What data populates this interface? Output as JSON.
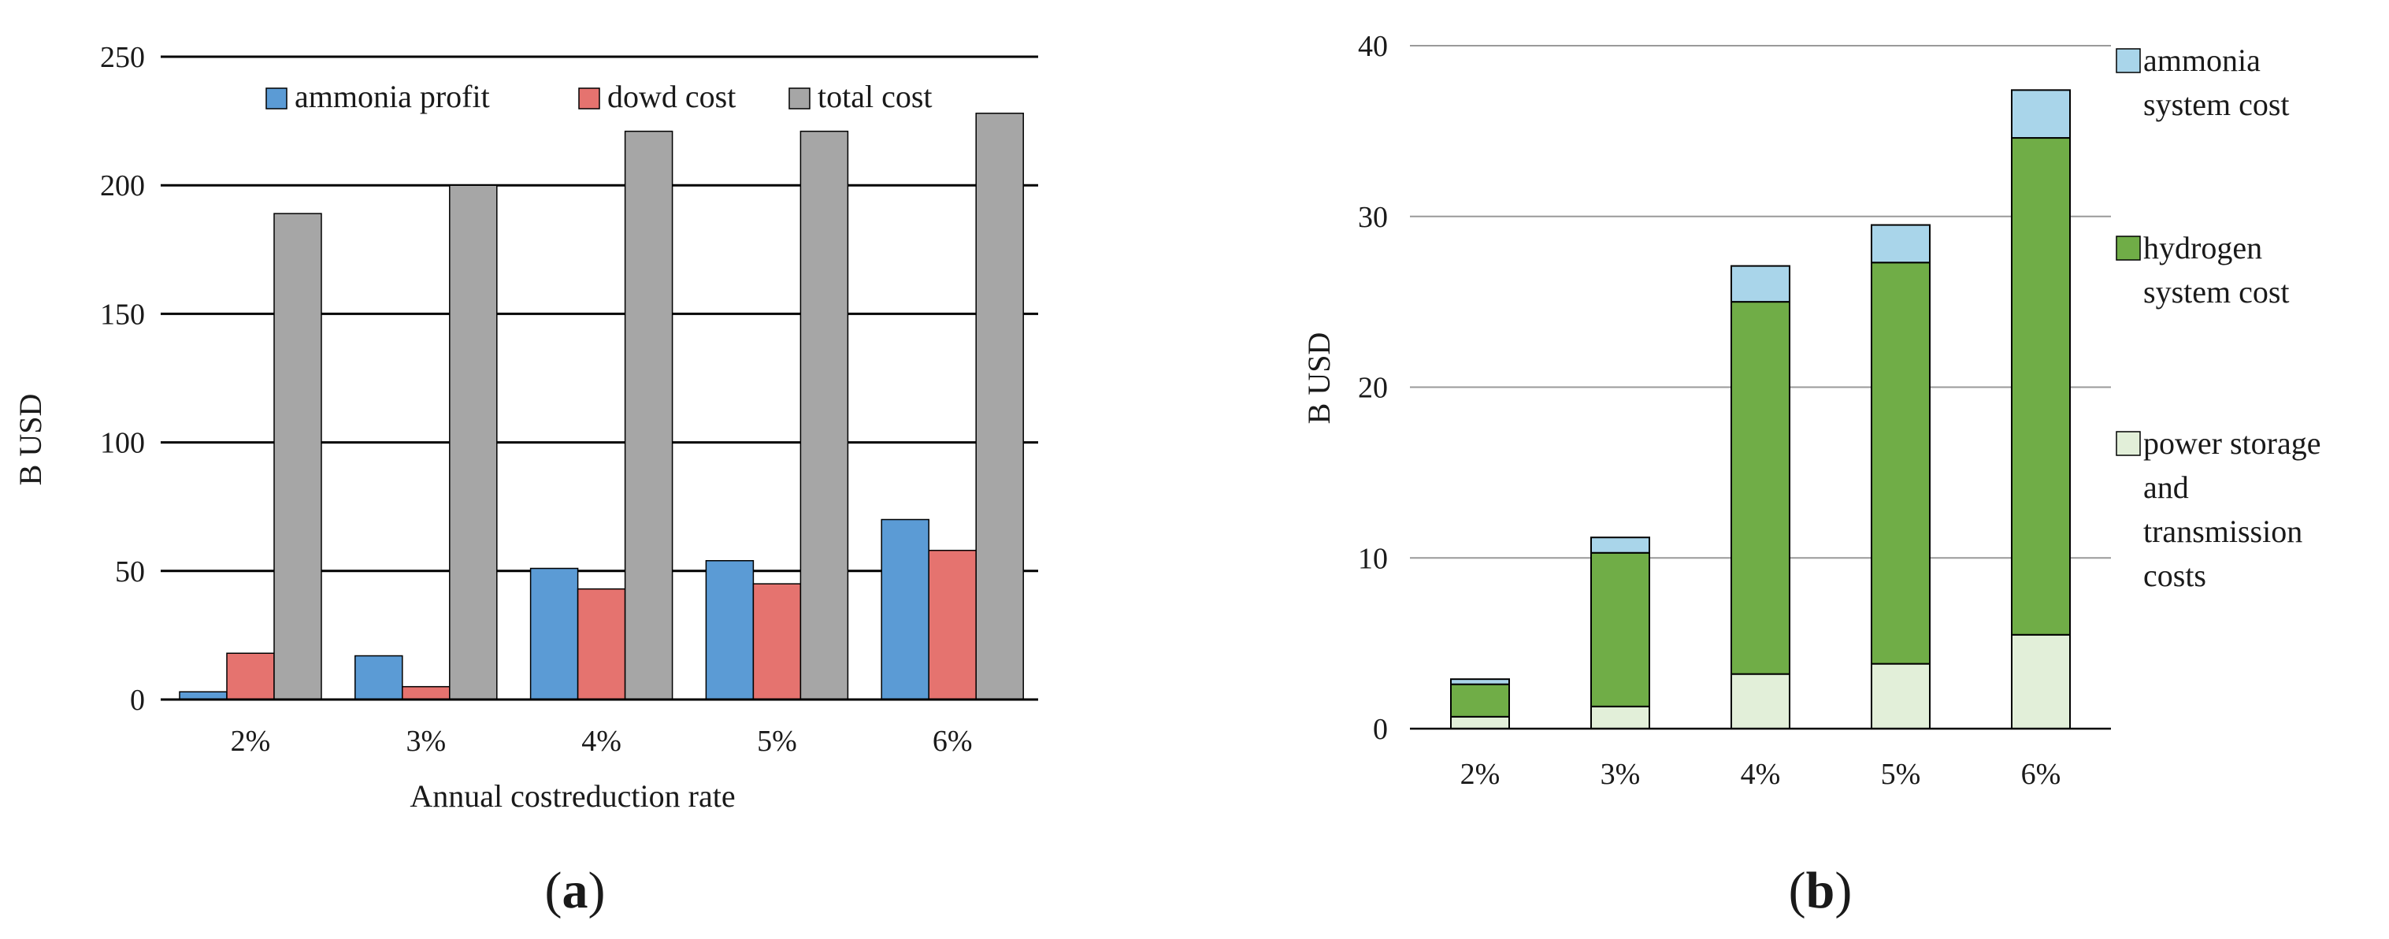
{
  "chart_data": [
    {
      "panel_label": "a",
      "type": "bar",
      "title": "",
      "xlabel": "Annual costreduction rate",
      "ylabel": "B USD",
      "ylim": [
        0,
        250
      ],
      "yticks": [
        0,
        50,
        100,
        150,
        200,
        250
      ],
      "grid": true,
      "legend_position": "top",
      "categories": [
        "2%",
        "3%",
        "4%",
        "5%",
        "6%"
      ],
      "series": [
        {
          "name": "ammonia profit",
          "color": "#5b9bd5",
          "values": [
            3,
            17,
            51,
            54,
            70
          ]
        },
        {
          "name": "dowd cost",
          "color": "#e5736f",
          "values": [
            18,
            5,
            43,
            45,
            58
          ]
        },
        {
          "name": "total cost",
          "color": "#a6a6a6",
          "values": [
            189,
            200,
            221,
            221,
            228
          ]
        }
      ]
    },
    {
      "panel_label": "b",
      "type": "stacked-bar",
      "title": "",
      "xlabel": "",
      "ylabel": "B USD",
      "ylim": [
        0,
        40
      ],
      "yticks": [
        0,
        10,
        20,
        30,
        40
      ],
      "grid": true,
      "legend_position": "right",
      "categories": [
        "2%",
        "3%",
        "4%",
        "5%",
        "6%"
      ],
      "series": [
        {
          "name": "power storage and transmission costs",
          "legend_lines": [
            "power storage",
            "and",
            "transmission",
            "costs"
          ],
          "color": "#e2efd9",
          "values": [
            0.7,
            1.3,
            3.2,
            3.8,
            5.5
          ]
        },
        {
          "name": "hydrogen system cost",
          "legend_lines": [
            "hydrogen",
            "system cost"
          ],
          "color": "#70ad47",
          "values": [
            1.9,
            9.0,
            21.8,
            23.5,
            29.1
          ]
        },
        {
          "name": "ammonia system cost",
          "legend_lines": [
            "ammonia",
            "system cost"
          ],
          "color": "#a9d5ea",
          "values": [
            0.3,
            0.9,
            2.1,
            2.2,
            2.8
          ]
        }
      ]
    }
  ]
}
